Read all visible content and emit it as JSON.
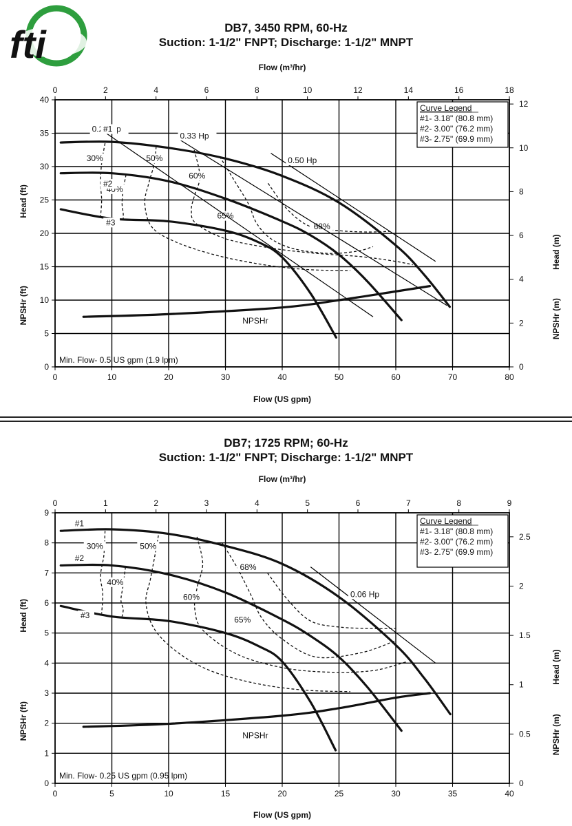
{
  "logo_text": "fti",
  "chart_data": [
    {
      "type": "line",
      "title": "DB7, 3450 RPM, 60-Hz",
      "subtitle": "Suction: 1-1/2\" FNPT; Discharge: 1-1/2\" MNPT",
      "xlabel": "Flow (US gpm)",
      "x2label": "Flow (m³/hr)",
      "ylabel": "Head (ft)",
      "ylabel_b": "NPSHr (ft)",
      "y2label": "Head (m)",
      "y2label_b": "NPSHr (m)",
      "xlim": [
        0,
        80
      ],
      "ylim": [
        0,
        40
      ],
      "x_ticks": [
        0,
        10,
        20,
        30,
        40,
        50,
        60,
        70,
        80
      ],
      "y_ticks": [
        0,
        5,
        10,
        15,
        20,
        25,
        30,
        35,
        40
      ],
      "x2_ticks": [
        0,
        2,
        4,
        6,
        8,
        10,
        12,
        14,
        16,
        18
      ],
      "y2_ticks": [
        0,
        2,
        4,
        6,
        8,
        10,
        12
      ],
      "grid": true,
      "legend_title": "Curve Legend",
      "legend": [
        "#1- 3.18\" (80.8 mm)",
        "#2- 3.00\" (76.2 mm)",
        "#3- 2.75\" (69.9 mm)"
      ],
      "legend_position": "top-right",
      "min_flow_note": "Min. Flow- 0.5 US gpm (1.9 lpm)",
      "series": [
        {
          "name": "#1",
          "x": [
            1,
            10,
            20,
            30,
            40,
            50,
            60,
            65,
            69.5
          ],
          "y": [
            33.6,
            33.7,
            32.8,
            31.2,
            28.6,
            24.6,
            18.2,
            13.8,
            9.0
          ]
        },
        {
          "name": "#2",
          "x": [
            1,
            10,
            20,
            30,
            40,
            45,
            50,
            55,
            61
          ],
          "y": [
            29.0,
            29.0,
            27.8,
            25.2,
            21.8,
            19.7,
            16.8,
            12.8,
            7.0
          ]
        },
        {
          "name": "#3",
          "x": [
            1,
            10,
            20,
            30,
            36,
            40,
            45,
            49.5
          ],
          "y": [
            23.6,
            22.2,
            21.8,
            20.4,
            18.6,
            16.4,
            11.0,
            4.4
          ]
        },
        {
          "name": "NPSHr",
          "x": [
            5,
            20,
            40,
            50,
            60,
            66
          ],
          "y": [
            7.5,
            7.9,
            8.9,
            10.0,
            11.3,
            12.1
          ]
        }
      ],
      "curve_labels": [
        "#1",
        "#2",
        "#3"
      ],
      "npsh_label": "NPSHr",
      "hp_lines": [
        {
          "label": "0.25 Hp",
          "x": [
            9,
            56
          ],
          "y": [
            35,
            7.5
          ]
        },
        {
          "label": "0.33 Hp",
          "x": [
            22,
            69
          ],
          "y": [
            34,
            9.2
          ]
        },
        {
          "label": "0.50 Hp",
          "x": [
            38,
            67
          ],
          "y": [
            32,
            15.8
          ]
        }
      ],
      "efficiency_lines": [
        {
          "label": "30%",
          "x": [
            8.8,
            8.2,
            8.0,
            8.2,
            8.0
          ],
          "y": [
            33.5,
            30.5,
            27.5,
            25,
            22.4
          ]
        },
        {
          "label": "40%",
          "x": [
            12.5,
            12,
            11.8,
            12,
            12
          ],
          "y": [
            28.8,
            26.5,
            24.5,
            23,
            22
          ]
        },
        {
          "label": "50%",
          "x": [
            17.8,
            17.5,
            16.5,
            15.8,
            17,
            21,
            28,
            36,
            44,
            52
          ],
          "y": [
            33,
            30.5,
            27.5,
            24.5,
            21,
            18.8,
            16.8,
            15.4,
            14.6,
            14.4
          ]
        },
        {
          "label": "60%",
          "x": [
            24.5,
            25.5,
            24.5,
            24,
            24.8,
            30,
            38,
            46,
            54,
            60,
            63
          ],
          "y": [
            32.5,
            28.5,
            25.5,
            23.5,
            21.5,
            19.2,
            17.8,
            17.0,
            16.5,
            15.8,
            15.3
          ]
        },
        {
          "label": "65%",
          "x": [
            29,
            31.5,
            34,
            35.5,
            38,
            42,
            48,
            53,
            56
          ],
          "y": [
            31.5,
            28,
            24.5,
            21.5,
            19.2,
            17.7,
            17.0,
            17.3,
            18.0
          ]
        },
        {
          "label": "68%",
          "x": [
            37.5,
            41,
            45,
            50,
            55,
            59
          ],
          "y": [
            27.5,
            23.5,
            21.0,
            20.4,
            20.2,
            20.3
          ]
        }
      ]
    },
    {
      "type": "line",
      "title": "DB7; 1725 RPM; 60-Hz",
      "subtitle": "Suction: 1-1/2\" FNPT; Discharge: 1-1/2\" MNPT",
      "xlabel": "Flow (US gpm)",
      "x2label": "Flow (m³/hr)",
      "ylabel": "Head (ft)",
      "ylabel_b": "NPSHr (ft)",
      "y2label": "Head (m)",
      "y2label_b": "NPSHr (m)",
      "xlim": [
        0,
        40
      ],
      "ylim": [
        0,
        9
      ],
      "x_ticks": [
        0,
        5,
        10,
        15,
        20,
        25,
        30,
        35,
        40
      ],
      "y_ticks": [
        0,
        1,
        2,
        3,
        4,
        5,
        6,
        7,
        8,
        9
      ],
      "x2_ticks": [
        0,
        1,
        2,
        3,
        4,
        5,
        6,
        7,
        8,
        9
      ],
      "y2_ticks": [
        0,
        0.5,
        1,
        1.5,
        2,
        2.5
      ],
      "grid": true,
      "legend_title": "Curve Legend",
      "legend": [
        "#1- 3.18\" (80.8 mm)",
        "#2- 3.00\" (76.2 mm)",
        "#3- 2.75\" (69.9 mm)"
      ],
      "legend_position": "top-right",
      "min_flow_note": "Min. Flow- 0.25 US gpm (0.95 lpm)",
      "series": [
        {
          "name": "#1",
          "x": [
            0.5,
            5,
            10,
            15,
            20,
            25,
            30,
            32.5,
            34.8
          ],
          "y": [
            8.4,
            8.45,
            8.3,
            7.9,
            7.3,
            6.2,
            4.6,
            3.5,
            2.3
          ]
        },
        {
          "name": "#2",
          "x": [
            0.5,
            5,
            10,
            15,
            20,
            22.5,
            25,
            27.5,
            30.5
          ],
          "y": [
            7.25,
            7.25,
            6.95,
            6.35,
            5.45,
            4.9,
            4.2,
            3.2,
            1.75
          ]
        },
        {
          "name": "#3",
          "x": [
            0.5,
            5,
            10,
            15,
            18,
            20,
            22.5,
            24.7
          ],
          "y": [
            5.9,
            5.55,
            5.4,
            5.0,
            4.55,
            4.05,
            2.7,
            1.1
          ]
        },
        {
          "name": "NPSHr",
          "x": [
            2.5,
            10,
            20,
            25,
            30,
            33
          ],
          "y": [
            1.88,
            1.98,
            2.25,
            2.5,
            2.85,
            3.0
          ]
        }
      ],
      "curve_labels": [
        "#1",
        "#2",
        "#3"
      ],
      "npsh_label": "NPSHr",
      "hp_lines": [
        {
          "label": "0.06 Hp",
          "x": [
            22.5,
            33.5
          ],
          "y": [
            7.2,
            4.0
          ]
        }
      ],
      "efficiency_lines": [
        {
          "label": "30%",
          "x": [
            4.4,
            4.3,
            4.0,
            4.2,
            4.1
          ],
          "y": [
            8.4,
            7.6,
            6.9,
            6.3,
            5.65
          ]
        },
        {
          "label": "40%",
          "x": [
            6.2,
            6.0,
            5.8,
            6.0,
            5.9
          ],
          "y": [
            7.2,
            6.6,
            6.1,
            5.8,
            5.55
          ]
        },
        {
          "label": "50%",
          "x": [
            9.1,
            8.8,
            8.4,
            8.0,
            8.8,
            11,
            14,
            18,
            22,
            26
          ],
          "y": [
            8.25,
            7.6,
            6.8,
            6.0,
            5.1,
            4.3,
            3.7,
            3.3,
            3.1,
            3.05
          ]
        },
        {
          "label": "60%",
          "x": [
            12.5,
            13.0,
            12.5,
            12.3,
            13,
            16,
            20,
            24,
            28,
            31
          ],
          "y": [
            8.2,
            7.3,
            6.5,
            5.8,
            5.1,
            4.3,
            3.85,
            3.7,
            3.75,
            4.05
          ]
        },
        {
          "label": "65%",
          "x": [
            14.7,
            16.0,
            17.2,
            18.2,
            20,
            23,
            27,
            30
          ],
          "y": [
            8.0,
            7.2,
            6.3,
            5.5,
            4.8,
            4.2,
            4.35,
            4.75
          ]
        },
        {
          "label": "68%",
          "x": [
            18.7,
            20.5,
            22.5,
            25,
            28,
            30
          ],
          "y": [
            7.0,
            6.1,
            5.4,
            5.2,
            5.15,
            5.15
          ]
        }
      ]
    }
  ]
}
